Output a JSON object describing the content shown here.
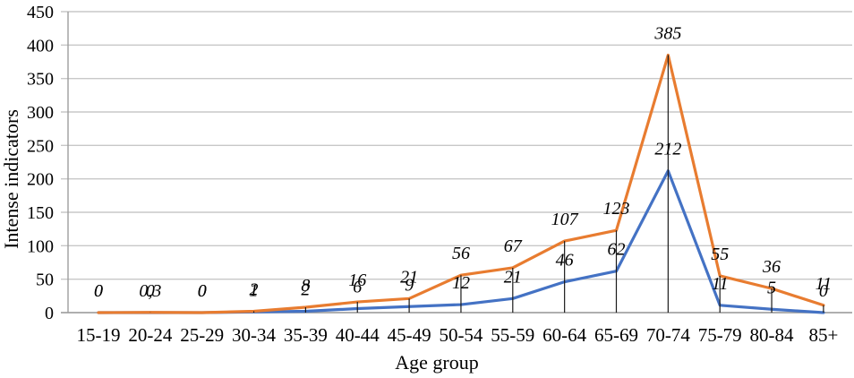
{
  "chart_data": {
    "type": "line",
    "title": "",
    "xlabel": "Age group",
    "ylabel": "Intense indicators",
    "ylim": [
      0,
      450
    ],
    "ytick_step": 50,
    "grid": true,
    "legend_position": "none",
    "categories": [
      "15-19",
      "20-24",
      "25-29",
      "30-34",
      "35-39",
      "40-44",
      "45-49",
      "50-54",
      "55-59",
      "60-64",
      "65-69",
      "70-74",
      "75-79",
      "80-84",
      "85+"
    ],
    "series": [
      {
        "name": "upper-series-orange",
        "color": "#E87C30",
        "values": [
          0,
          0.3,
          0,
          2,
          8,
          16,
          21,
          56,
          67,
          107,
          123,
          385,
          55,
          36,
          11
        ],
        "labels": [
          "0",
          "0,3",
          "0",
          "2",
          "8",
          "16",
          "21",
          "56",
          "67",
          "107",
          "123",
          "385",
          "55",
          "36",
          "11"
        ],
        "has_drop_lines": true
      },
      {
        "name": "lower-series-blue",
        "color": "#4472C4",
        "values": [
          0,
          0,
          0,
          1,
          2,
          6,
          9,
          12,
          21,
          46,
          62,
          212,
          11,
          5,
          0
        ],
        "labels": [
          "0",
          "0",
          "0",
          "1",
          "2",
          "6",
          "9",
          "12",
          "21",
          "46",
          "62",
          "212",
          "11",
          "5",
          "0"
        ],
        "has_drop_lines": false
      }
    ],
    "colors": {
      "gridline": "#C8C8C8",
      "axis_line": "#9E9E9E",
      "drop_line": "#1A1A1A",
      "label_text": "#000000"
    }
  }
}
